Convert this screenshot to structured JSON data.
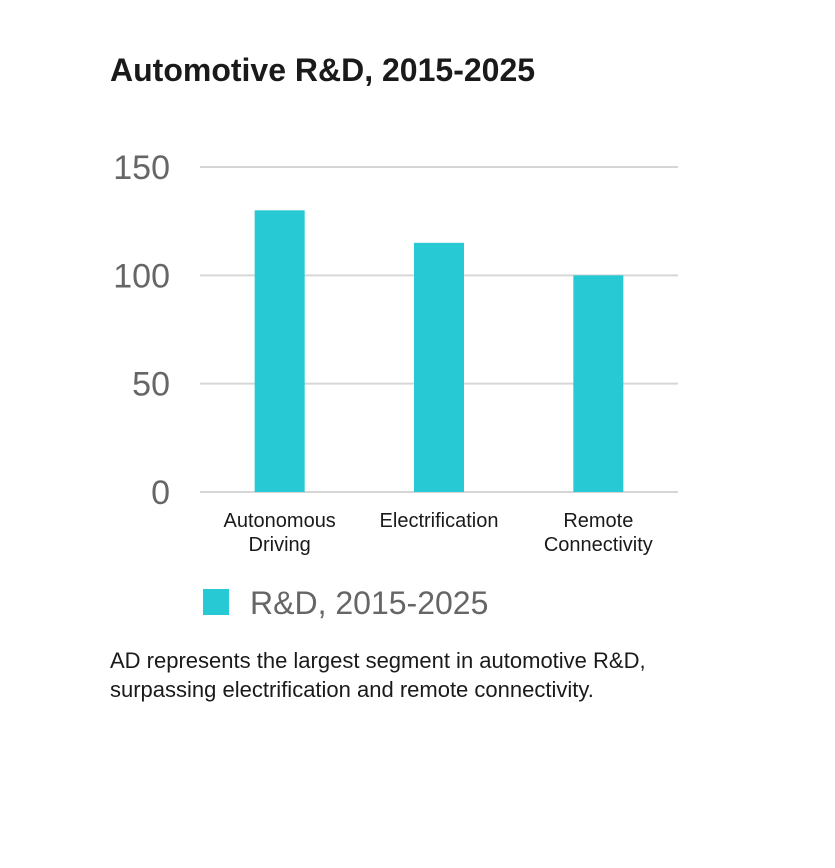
{
  "colors": {
    "bar": "#26c9d4",
    "grid": "#d6d6d6",
    "tick_text": "#666666",
    "category_text": "#1a1a1a",
    "legend_text": "#666666"
  },
  "chart_data": {
    "type": "bar",
    "title": "Automotive R&D, 2015-2025",
    "categories": [
      [
        "Autonomous",
        "Driving"
      ],
      [
        "Electrification"
      ],
      [
        "Remote",
        "Connectivity"
      ]
    ],
    "series": [
      {
        "name": "R&D, 2015-2025",
        "values": [
          130,
          115,
          100
        ]
      }
    ],
    "ylim": [
      0,
      150
    ],
    "yticks": [
      0,
      50,
      100,
      150
    ],
    "grid": true,
    "legend_position": "bottom"
  },
  "caption": "AD represents the largest segment in automotive R&D, surpassing electrification and remote connectivity."
}
